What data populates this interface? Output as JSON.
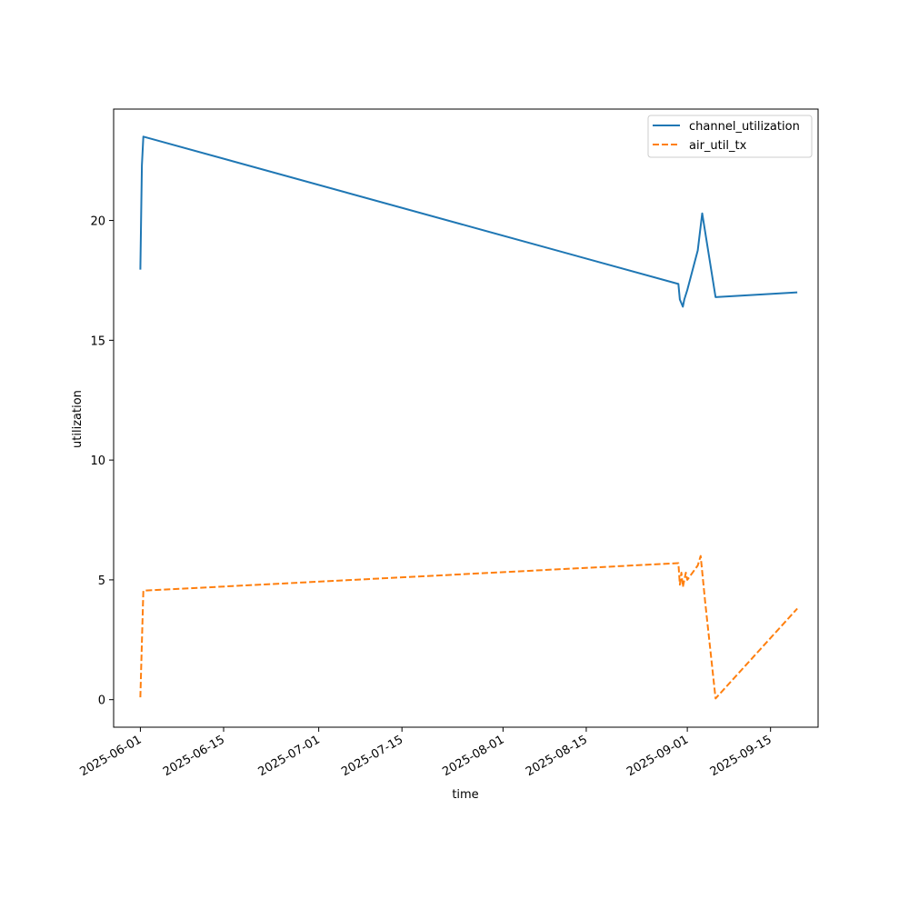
{
  "chart_data": {
    "type": "line",
    "title": "",
    "xlabel": "time",
    "ylabel": "utilization",
    "x_axis_type": "date",
    "xlim": [
      "2025-05-27T12:00",
      "2025-09-23T00:00"
    ],
    "ylim": [
      -1.15,
      24.65
    ],
    "x_ticks": [
      "2025-06-01",
      "2025-06-15",
      "2025-07-01",
      "2025-07-15",
      "2025-08-01",
      "2025-08-15",
      "2025-09-01",
      "2025-09-15"
    ],
    "y_ticks": [
      0,
      5,
      10,
      15,
      20
    ],
    "grid": false,
    "legend_position": "top-right",
    "series": [
      {
        "name": "channel_utilization",
        "color": "#1f77b4",
        "style": "solid",
        "points": [
          {
            "x": "2025-06-01T00:00",
            "y": 17.95
          },
          {
            "x": "2025-06-01T06:00",
            "y": 22.3
          },
          {
            "x": "2025-06-01T12:00",
            "y": 23.5
          },
          {
            "x": "2025-08-30T12:00",
            "y": 17.35
          },
          {
            "x": "2025-08-30T18:00",
            "y": 16.7
          },
          {
            "x": "2025-08-31T00:00",
            "y": 16.55
          },
          {
            "x": "2025-08-31T06:00",
            "y": 16.4
          },
          {
            "x": "2025-08-31T12:00",
            "y": 16.7
          },
          {
            "x": "2025-09-01T00:00",
            "y": 17.1
          },
          {
            "x": "2025-09-02T18:00",
            "y": 18.75
          },
          {
            "x": "2025-09-03T12:00",
            "y": 20.3
          },
          {
            "x": "2025-09-05T18:00",
            "y": 16.8
          },
          {
            "x": "2025-09-19T12:00",
            "y": 17.0
          }
        ]
      },
      {
        "name": "air_util_tx",
        "color": "#ff7f0e",
        "style": "dashed",
        "points": [
          {
            "x": "2025-06-01T00:00",
            "y": 0.1
          },
          {
            "x": "2025-06-01T12:00",
            "y": 4.55
          },
          {
            "x": "2025-08-30T12:00",
            "y": 5.7
          },
          {
            "x": "2025-08-30T18:00",
            "y": 4.8
          },
          {
            "x": "2025-08-31T00:00",
            "y": 5.3
          },
          {
            "x": "2025-08-31T06:00",
            "y": 4.7
          },
          {
            "x": "2025-08-31T18:00",
            "y": 5.3
          },
          {
            "x": "2025-09-01T00:00",
            "y": 5.0
          },
          {
            "x": "2025-09-02T18:00",
            "y": 5.6
          },
          {
            "x": "2025-09-03T06:00",
            "y": 6.0
          },
          {
            "x": "2025-09-04T00:00",
            "y": 4.1
          },
          {
            "x": "2025-09-05T18:00",
            "y": 0.05
          },
          {
            "x": "2025-09-19T12:00",
            "y": 3.8
          }
        ]
      }
    ]
  }
}
